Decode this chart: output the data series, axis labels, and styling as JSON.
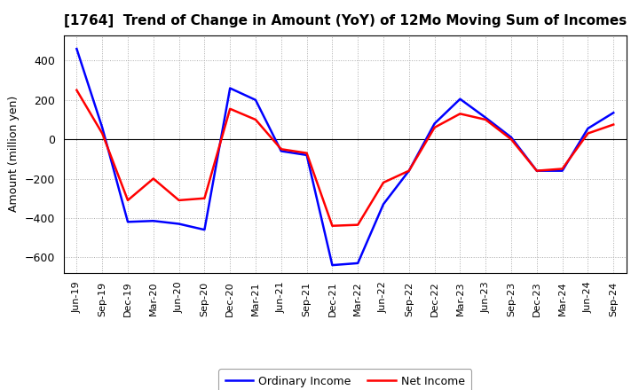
{
  "title": "[1764]  Trend of Change in Amount (YoY) of 12Mo Moving Sum of Incomes",
  "ylabel": "Amount (million yen)",
  "x_labels": [
    "Jun-19",
    "Sep-19",
    "Dec-19",
    "Mar-20",
    "Jun-20",
    "Sep-20",
    "Dec-20",
    "Mar-21",
    "Jun-21",
    "Sep-21",
    "Dec-21",
    "Mar-22",
    "Jun-22",
    "Sep-22",
    "Dec-22",
    "Mar-23",
    "Jun-23",
    "Sep-23",
    "Dec-23",
    "Mar-24",
    "Jun-24",
    "Sep-24"
  ],
  "ordinary_income": [
    460,
    60,
    -420,
    -415,
    -430,
    -460,
    260,
    200,
    -60,
    -80,
    -640,
    -630,
    -330,
    -160,
    80,
    205,
    110,
    10,
    -160,
    -160,
    55,
    135
  ],
  "net_income": [
    250,
    30,
    -310,
    -200,
    -310,
    -300,
    155,
    100,
    -50,
    -70,
    -440,
    -435,
    -220,
    -160,
    60,
    130,
    100,
    0,
    -160,
    -150,
    30,
    75
  ],
  "ylim": [
    -680,
    530
  ],
  "yticks": [
    -600,
    -400,
    -200,
    0,
    200,
    400
  ],
  "ordinary_color": "#0000ff",
  "net_color": "#ff0000",
  "line_width": 1.8,
  "background_color": "#ffffff",
  "grid_color": "#aaaaaa",
  "legend_ordinary": "Ordinary Income",
  "legend_net": "Net Income",
  "title_fontsize": 11,
  "ylabel_fontsize": 9,
  "xtick_fontsize": 8,
  "ytick_fontsize": 9
}
